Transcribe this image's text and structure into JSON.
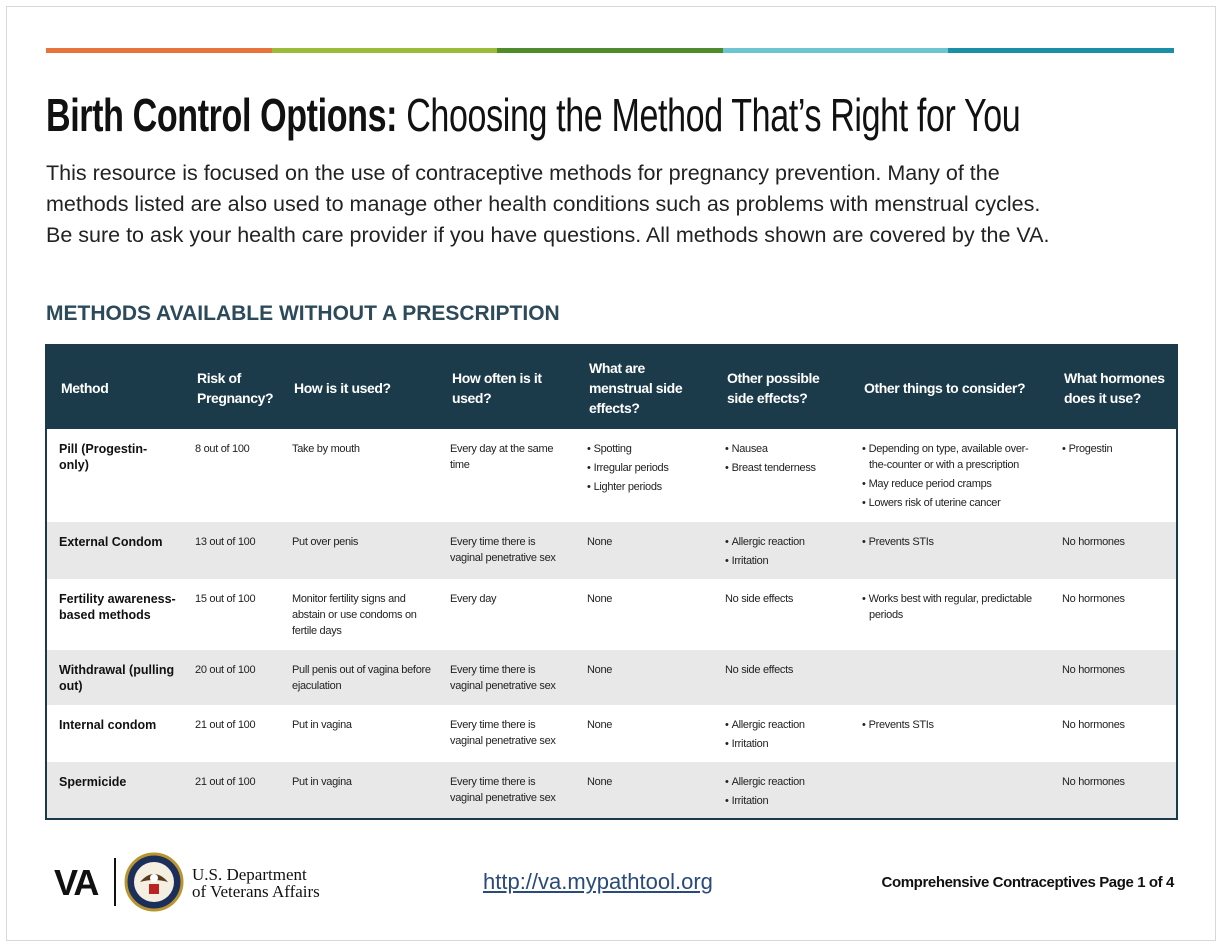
{
  "header": {
    "title_bold": "Birth Control Options:",
    "title_rest": "Choosing the Method That’s Right for You",
    "intro": [
      "This resource is focused on the use of contraceptive methods for pregnancy prevention. Many of the",
      "methods listed are also used to manage other health conditions such as problems with menstrual cycles.",
      "Be sure to ask your health care provider if you have questions. All methods shown are covered by the VA."
    ]
  },
  "section_title": "METHODS AVAILABLE WITHOUT A PRESCRIPTION",
  "table": {
    "headers": [
      "Method",
      "Risk of Pregnancy?",
      "How is it used?",
      "How often is it used?",
      "What are menstrual side effects?",
      "Other possible side effects?",
      "Other things to consider?",
      "What hormones does it use?"
    ],
    "rows": [
      [
        "Pill (Progestin-only)",
        "8 out of 100",
        "Take by mouth",
        "Every day at the same time",
        [
          "Spotting",
          "Irregular periods",
          "Lighter periods"
        ],
        [
          "Nausea",
          "Breast tenderness"
        ],
        [
          "Depending on type, available over-the-counter or with a prescription",
          "May reduce period cramps",
          "Lowers risk of uterine cancer"
        ],
        [
          "Progestin"
        ]
      ],
      [
        "External Condom",
        "13 out of 100",
        "Put over penis",
        "Every time there is vaginal penetrative sex",
        "None",
        [
          "Allergic reaction",
          "Irritation"
        ],
        [
          "Prevents STIs"
        ],
        "No hormones"
      ],
      [
        "Fertility awareness-based methods",
        "15 out of 100",
        "Monitor fertility signs and abstain or use condoms on fertile days",
        "Every day",
        "None",
        "No side effects",
        [
          "Works best with regular, predictable periods"
        ],
        "No hormones"
      ],
      [
        "Withdrawal (pulling out)",
        "20 out of 100",
        "Pull penis out of vagina before ejaculation",
        "Every time there is vaginal penetrative sex",
        "None",
        "No side effects",
        [],
        "No hormones"
      ],
      [
        "Internal condom",
        "21 out of 100",
        "Put in vagina",
        "Every time there is vaginal penetrative sex",
        "None",
        [
          "Allergic reaction",
          "Irritation"
        ],
        [
          "Prevents STIs"
        ],
        "No hormones"
      ],
      [
        "Spermicide",
        "21 out of 100",
        "Put in vagina",
        "Every time there is vaginal penetrative sex",
        "None",
        [
          "Allergic reaction",
          "Irritation"
        ],
        [],
        "No hormones"
      ]
    ]
  },
  "footer": {
    "logo": "VA",
    "department": [
      "U.S. Department",
      "of Veterans Affairs"
    ],
    "link": "http://va.mypathtool.org",
    "page": "Comprehensive Contraceptives Page 1 of 4"
  }
}
